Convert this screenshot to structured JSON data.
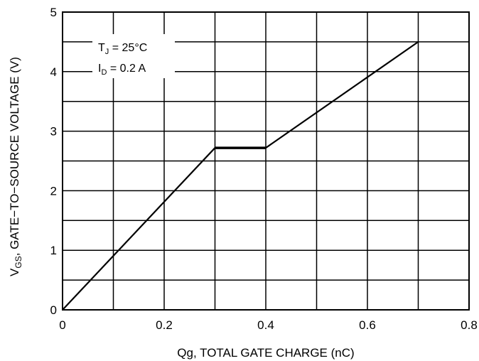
{
  "chart_data": {
    "type": "line",
    "xlabel": "Qg, TOTAL GATE CHARGE (nC)",
    "ylabel": {
      "symbol": "V",
      "subscript": "GS",
      "rest": ", GATE−TO−SOURCE VOLTAGE (V)"
    },
    "xlim": [
      0,
      0.8
    ],
    "ylim": [
      0,
      5
    ],
    "x_ticks": [
      0,
      0.2,
      0.4,
      0.6,
      0.8
    ],
    "x_tick_labels": [
      "0",
      "0.2",
      "0.4",
      "0.6",
      "0.8"
    ],
    "y_ticks": [
      0,
      1,
      2,
      3,
      4,
      5
    ],
    "y_tick_labels": [
      "0",
      "1",
      "2",
      "3",
      "4",
      "5"
    ],
    "grid": true,
    "x_minor_gridlines": [
      0.1,
      0.3,
      0.5,
      0.7
    ],
    "y_minor_gridlines": [
      0.5,
      1.5,
      2.5,
      3.5,
      4.5
    ],
    "series": [
      {
        "x": [
          0,
          0.3,
          0.4,
          0.7
        ],
        "y": [
          0,
          2.72,
          2.72,
          4.5
        ],
        "color": "#000000"
      }
    ],
    "annotations": [
      {
        "symbol": "T",
        "subscript": "J",
        "rest": " = 25°C"
      },
      {
        "symbol": "I",
        "subscript": "D",
        "rest": " = 0.2 A"
      }
    ]
  }
}
